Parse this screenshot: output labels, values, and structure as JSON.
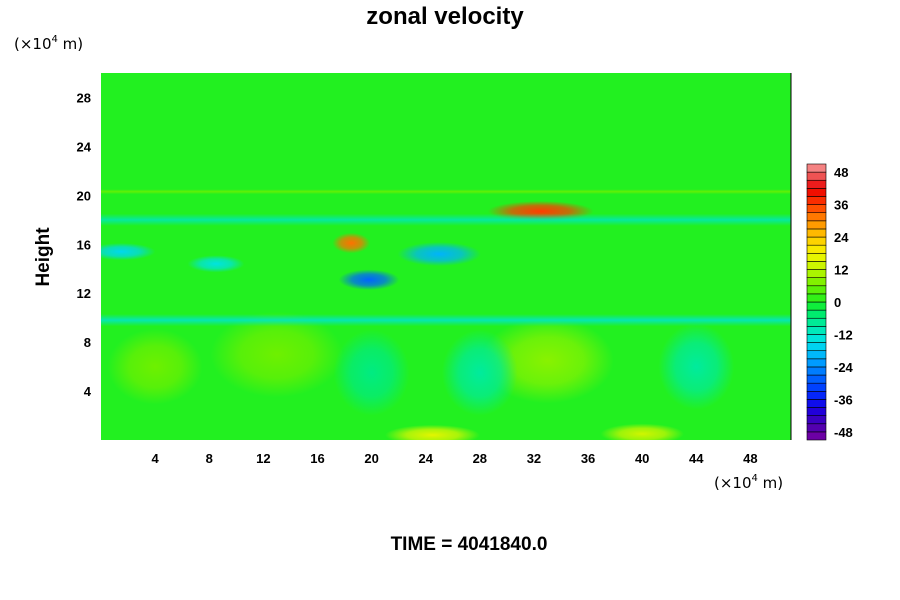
{
  "chart_data": {
    "type": "heatmap",
    "title": "zonal velocity",
    "xlabel": "",
    "ylabel": "Height",
    "x_unit": {
      "prefix": "(×10",
      "exp": "4",
      "suffix": " m)"
    },
    "y_unit": {
      "prefix": "(×10",
      "exp": "4",
      "suffix": " m)"
    },
    "xlim": [
      0,
      51
    ],
    "ylim": [
      0,
      30
    ],
    "x_ticks": [
      4,
      8,
      12,
      16,
      20,
      24,
      28,
      32,
      36,
      40,
      44,
      48
    ],
    "y_ticks": [
      4,
      8,
      12,
      16,
      20,
      24,
      28
    ],
    "colorbar": {
      "range": [
        -51,
        51
      ],
      "ticks": [
        48,
        36,
        24,
        12,
        0,
        -12,
        -24,
        -36,
        -48
      ],
      "levels": [
        -51,
        -48,
        -45,
        -42,
        -39,
        -36,
        -33,
        -30,
        -27,
        -24,
        -21,
        -18,
        -15,
        -12,
        -9,
        -6,
        -3,
        0,
        3,
        6,
        9,
        12,
        15,
        18,
        21,
        24,
        27,
        30,
        33,
        36,
        39,
        42,
        45,
        48,
        51
      ]
    },
    "features": [
      {
        "kind": "blob",
        "x": 32.5,
        "y": 18.7,
        "value": 36,
        "rx": 2.8,
        "ry": 0.6
      },
      {
        "kind": "blob",
        "x": 18.5,
        "y": 16.1,
        "value": 32,
        "rx": 1.0,
        "ry": 0.6
      },
      {
        "kind": "blob",
        "x": 19.8,
        "y": 13.1,
        "value": -28,
        "rx": 1.6,
        "ry": 0.6
      },
      {
        "kind": "blob",
        "x": 25.0,
        "y": 15.2,
        "value": -20,
        "rx": 2.2,
        "ry": 0.7
      },
      {
        "kind": "blob",
        "x": 1.5,
        "y": 15.4,
        "value": -16,
        "rx": 1.8,
        "ry": 0.5
      },
      {
        "kind": "blob",
        "x": 8.5,
        "y": 14.4,
        "value": -14,
        "rx": 1.5,
        "ry": 0.5
      },
      {
        "kind": "blob",
        "x": 24.5,
        "y": 0.4,
        "value": 16,
        "rx": 2.5,
        "ry": 0.6
      },
      {
        "kind": "blob",
        "x": 40.0,
        "y": 0.5,
        "value": 14,
        "rx": 2.2,
        "ry": 0.6
      },
      {
        "kind": "blob",
        "x": 33.0,
        "y": 6.5,
        "value": 8,
        "rx": 3.5,
        "ry": 2.5
      },
      {
        "kind": "blob",
        "x": 13.0,
        "y": 7.0,
        "value": 6,
        "rx": 3.5,
        "ry": 2.5
      },
      {
        "kind": "blob",
        "x": 4.0,
        "y": 6.0,
        "value": 6,
        "rx": 2.5,
        "ry": 2.2
      },
      {
        "kind": "blob",
        "x": 28.0,
        "y": 5.5,
        "value": -8,
        "rx": 2.0,
        "ry": 2.5
      },
      {
        "kind": "blob",
        "x": 44.0,
        "y": 6.0,
        "value": -8,
        "rx": 2.0,
        "ry": 2.5
      },
      {
        "kind": "blob",
        "x": 20.0,
        "y": 5.5,
        "value": -6,
        "rx": 2.0,
        "ry": 2.5
      },
      {
        "kind": "band",
        "y": 9.8,
        "value": -12,
        "ry": 0.5
      },
      {
        "kind": "band",
        "y": 18.0,
        "value": -10,
        "ry": 0.5
      },
      {
        "kind": "band",
        "y": 20.3,
        "value": 6,
        "ry": 0.2
      }
    ]
  },
  "footer": {
    "time_label": "TIME = 4041840.0"
  }
}
